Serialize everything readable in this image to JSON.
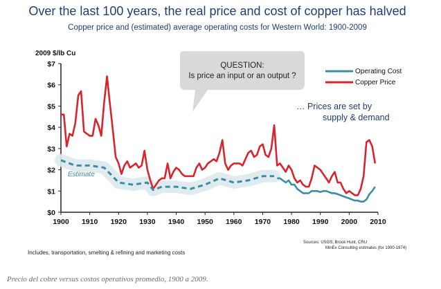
{
  "figure": {
    "title": "Over the last 100 years, the real price and cost of copper has halved",
    "subtitle": "Copper price and (estimated) average operating costs for Western World: 1900-2009",
    "caption": "Precio del cobre versus costos operativos promedio, 1900 a 2009.",
    "callout": {
      "line1": "QUESTION:",
      "line2": "Is price an input or an  output ?"
    },
    "side_note": {
      "line1": "… Prices are set by",
      "line2": "supply & demand"
    },
    "footnote": "Includes, transportation,  smelting & refining and marketing costs",
    "sources": {
      "line1": "Sources:  USGS, Brook Hunt, CRU",
      "line2": "MinEx Consulting estimates (for 1900-1974)"
    },
    "estimate_label": "Estimate"
  },
  "colors": {
    "price": "#d9232d",
    "cost": "#3a8ea3",
    "estimate_band": "#dde9ee",
    "title": "#1f3e73",
    "callout_fill": "#d9d9d9"
  },
  "chart_data": {
    "type": "line",
    "title": "Over the last 100 years, the real price and cost of copper has halved",
    "ylabel": "2009 $/lb Cu",
    "xlabel": "",
    "xlim": [
      1900,
      2010
    ],
    "ylim": [
      0,
      7
    ],
    "x_ticks": [
      1900,
      1910,
      1920,
      1930,
      1940,
      1950,
      1960,
      1970,
      1980,
      1990,
      2000,
      2010
    ],
    "y_ticks": [
      "$0",
      "$1",
      "$2",
      "$3",
      "$4",
      "$5",
      "$6",
      "$7"
    ],
    "grid": false,
    "legend": "top-right",
    "series": [
      {
        "name": "Copper Price",
        "color": "#d9232d",
        "x": [
          1900,
          1901,
          1902,
          1903,
          1904,
          1905,
          1906,
          1907,
          1908,
          1909,
          1910,
          1911,
          1912,
          1913,
          1914,
          1915,
          1916,
          1917,
          1918,
          1919,
          1920,
          1921,
          1922,
          1923,
          1924,
          1925,
          1926,
          1927,
          1928,
          1929,
          1930,
          1931,
          1932,
          1933,
          1934,
          1935,
          1936,
          1937,
          1938,
          1939,
          1940,
          1941,
          1942,
          1943,
          1944,
          1945,
          1946,
          1947,
          1948,
          1949,
          1950,
          1951,
          1952,
          1953,
          1954,
          1955,
          1956,
          1957,
          1958,
          1959,
          1960,
          1961,
          1962,
          1963,
          1964,
          1965,
          1966,
          1967,
          1968,
          1969,
          1970,
          1971,
          1972,
          1973,
          1974,
          1975,
          1976,
          1977,
          1978,
          1979,
          1980,
          1981,
          1982,
          1983,
          1984,
          1985,
          1986,
          1987,
          1988,
          1989,
          1990,
          1991,
          1992,
          1993,
          1994,
          1995,
          1996,
          1997,
          1998,
          1999,
          2000,
          2001,
          2002,
          2003,
          2004,
          2005,
          2006,
          2007,
          2008,
          2009
        ],
        "values": [
          4.6,
          4.6,
          3.1,
          3.7,
          3.6,
          4.2,
          5.5,
          5.7,
          3.8,
          3.7,
          3.6,
          3.6,
          4.4,
          4.1,
          3.6,
          5.2,
          6.4,
          5.1,
          3.9,
          2.6,
          2.3,
          1.8,
          2.2,
          2.4,
          2.1,
          2.2,
          2.3,
          2.1,
          2.2,
          2.9,
          2.0,
          1.5,
          1.1,
          1.3,
          1.5,
          1.6,
          1.6,
          2.3,
          1.6,
          1.9,
          2.1,
          2.0,
          1.8,
          1.7,
          1.7,
          1.7,
          1.7,
          2.1,
          2.3,
          2.0,
          2.1,
          2.3,
          2.4,
          2.5,
          2.4,
          2.8,
          3.4,
          2.3,
          2.0,
          2.2,
          2.3,
          2.3,
          2.3,
          2.2,
          2.5,
          2.8,
          2.9,
          2.6,
          2.7,
          3.1,
          3.2,
          2.7,
          2.6,
          3.0,
          4.1,
          2.2,
          2.3,
          2.1,
          1.9,
          2.2,
          2.0,
          1.6,
          1.4,
          1.5,
          1.3,
          1.2,
          1.2,
          1.6,
          2.2,
          2.1,
          2.0,
          1.8,
          1.6,
          1.4,
          1.7,
          1.9,
          1.4,
          1.4,
          1.1,
          0.9,
          1.0,
          0.9,
          0.8,
          0.8,
          1.1,
          1.7,
          3.3,
          3.4,
          3.1,
          2.3
        ]
      },
      {
        "name": "Operating Cost",
        "color": "#3a8ea3",
        "x": [
          1975,
          1976,
          1977,
          1978,
          1979,
          1980,
          1981,
          1982,
          1983,
          1984,
          1985,
          1986,
          1987,
          1988,
          1989,
          1990,
          1991,
          1992,
          1993,
          1994,
          1995,
          1996,
          1997,
          1998,
          1999,
          2000,
          2001,
          2002,
          2003,
          2004,
          2005,
          2006,
          2007,
          2008,
          2009
        ],
        "values": [
          1.6,
          1.6,
          1.5,
          1.4,
          1.5,
          1.3,
          1.3,
          1.1,
          1.0,
          0.9,
          0.9,
          0.9,
          1.0,
          1.0,
          1.0,
          0.95,
          1.0,
          1.0,
          0.95,
          0.9,
          0.9,
          0.85,
          0.8,
          0.75,
          0.7,
          0.65,
          0.6,
          0.55,
          0.55,
          0.5,
          0.5,
          0.6,
          0.85,
          1.0,
          1.2
        ]
      },
      {
        "name": "Operating Cost (Estimate)",
        "color": "#3a8ea3",
        "dashed": true,
        "x": [
          1900,
          1905,
          1910,
          1915,
          1920,
          1925,
          1930,
          1932,
          1935,
          1940,
          1945,
          1950,
          1955,
          1960,
          1965,
          1970,
          1974
        ],
        "values": [
          2.45,
          2.2,
          2.2,
          2.1,
          1.4,
          1.3,
          1.4,
          1.05,
          1.2,
          1.2,
          1.1,
          1.3,
          1.6,
          1.4,
          1.5,
          1.7,
          1.7
        ]
      }
    ]
  }
}
